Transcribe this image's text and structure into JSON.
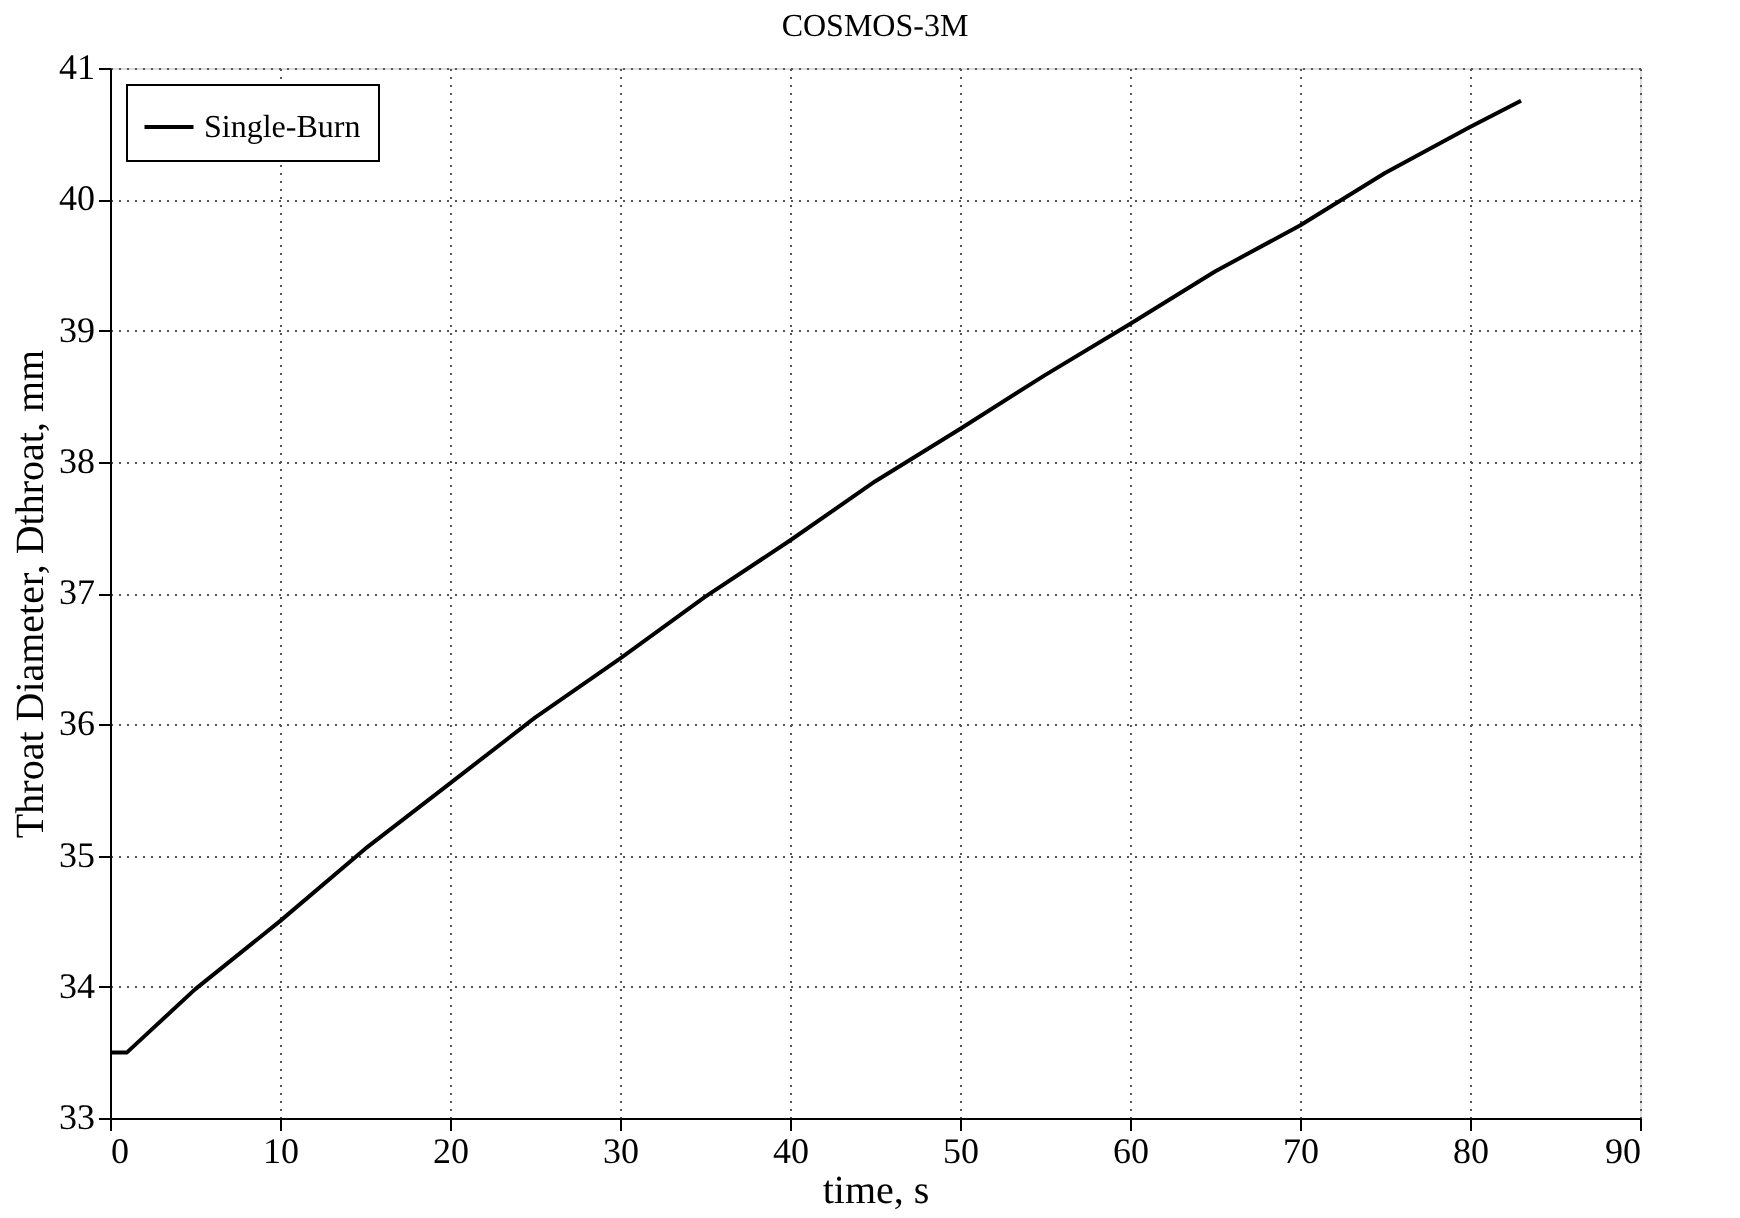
{
  "chart_data": {
    "type": "line",
    "title": "COSMOS-3M",
    "xlabel": "time, s",
    "ylabel": "Throat Diameter, Dthroat, mm",
    "x": [
      0,
      1,
      2,
      5,
      10,
      15,
      20,
      25,
      30,
      35,
      40,
      45,
      50,
      55,
      60,
      65,
      70,
      75,
      80,
      83
    ],
    "series": [
      {
        "name": "Single-Burn",
        "color": "#000000",
        "values": [
          33.5,
          33.5,
          33.62,
          33.98,
          34.5,
          35.05,
          35.55,
          36.05,
          36.5,
          36.97,
          37.4,
          37.85,
          38.25,
          38.66,
          39.05,
          39.45,
          39.8,
          40.2,
          40.55,
          40.75
        ]
      }
    ],
    "xlim": [
      0,
      90
    ],
    "xticks": [
      0,
      10,
      20,
      30,
      40,
      50,
      60,
      70,
      80,
      90
    ],
    "ylim": [
      33,
      41
    ],
    "yticks": [
      33,
      34,
      35,
      36,
      37,
      38,
      39,
      40,
      41
    ],
    "grid": true,
    "legend": "top left",
    "line_style": "solid",
    "marker": "none"
  }
}
